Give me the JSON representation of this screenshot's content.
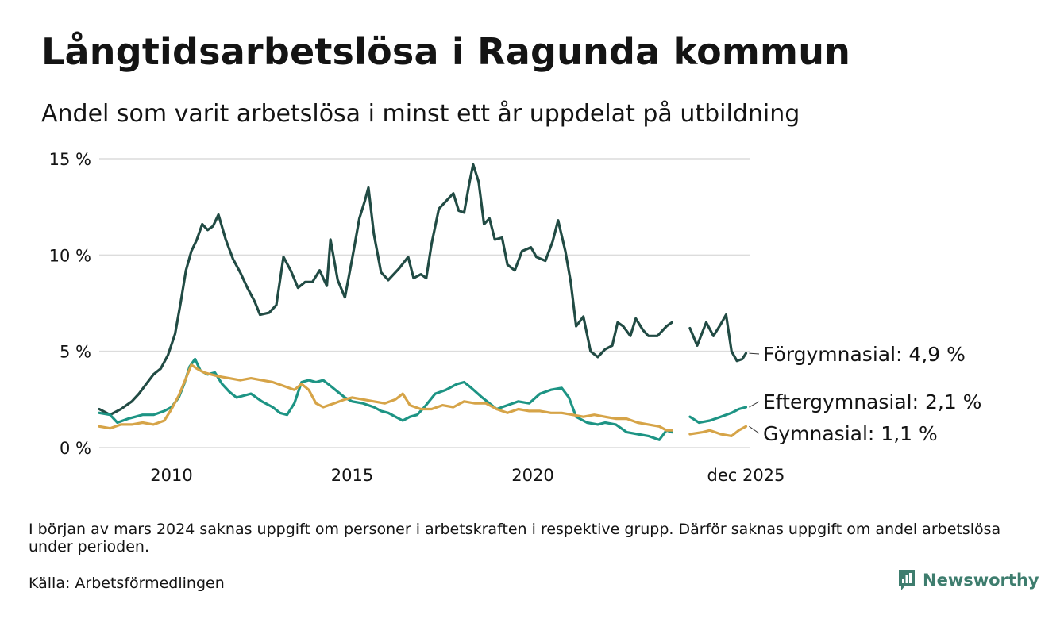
{
  "chart_data": {
    "type": "line",
    "title": "Långtidsarbetslösa i Ragunda kommun",
    "subtitle": "Andel som varit arbetslösa i minst ett år uppdelat på utbildning",
    "xlabel": "",
    "ylabel": "",
    "x_ticks": [
      {
        "x": 2010.0,
        "label": "2010"
      },
      {
        "x": 2015.0,
        "label": "2015"
      },
      {
        "x": 2020.0,
        "label": "2020"
      },
      {
        "x": 2025.9,
        "label": "dec 2025"
      }
    ],
    "y_ticks": [
      {
        "y": 0,
        "label": "0 %"
      },
      {
        "y": 5,
        "label": "5 %"
      },
      {
        "y": 10,
        "label": "10 %"
      },
      {
        "y": 15,
        "label": "15 %"
      }
    ],
    "xlim": [
      2008.0,
      2026.0
    ],
    "ylim": [
      0,
      15
    ],
    "grid": true,
    "series": [
      {
        "name": "Förgymnasial",
        "end_label": "Förgymnasial: 4,9 %",
        "color": "#214b44",
        "points": [
          [
            2008.0,
            2.0
          ],
          [
            2008.3,
            1.7
          ],
          [
            2008.6,
            2.0
          ],
          [
            2008.9,
            2.4
          ],
          [
            2009.1,
            2.8
          ],
          [
            2009.3,
            3.3
          ],
          [
            2009.5,
            3.8
          ],
          [
            2009.7,
            4.1
          ],
          [
            2009.9,
            4.8
          ],
          [
            2010.1,
            5.9
          ],
          [
            2010.25,
            7.5
          ],
          [
            2010.4,
            9.2
          ],
          [
            2010.55,
            10.2
          ],
          [
            2010.7,
            10.8
          ],
          [
            2010.85,
            11.6
          ],
          [
            2011.0,
            11.3
          ],
          [
            2011.15,
            11.5
          ],
          [
            2011.3,
            12.1
          ],
          [
            2011.5,
            10.8
          ],
          [
            2011.7,
            9.8
          ],
          [
            2011.9,
            9.1
          ],
          [
            2012.1,
            8.3
          ],
          [
            2012.3,
            7.6
          ],
          [
            2012.45,
            6.9
          ],
          [
            2012.7,
            7.0
          ],
          [
            2012.9,
            7.4
          ],
          [
            2013.1,
            9.9
          ],
          [
            2013.3,
            9.2
          ],
          [
            2013.5,
            8.3
          ],
          [
            2013.7,
            8.6
          ],
          [
            2013.9,
            8.6
          ],
          [
            2014.1,
            9.2
          ],
          [
            2014.3,
            8.4
          ],
          [
            2014.4,
            10.8
          ],
          [
            2014.6,
            8.7
          ],
          [
            2014.8,
            7.8
          ],
          [
            2015.0,
            9.8
          ],
          [
            2015.2,
            11.9
          ],
          [
            2015.35,
            12.8
          ],
          [
            2015.45,
            13.5
          ],
          [
            2015.6,
            11.1
          ],
          [
            2015.8,
            9.1
          ],
          [
            2016.0,
            8.7
          ],
          [
            2016.3,
            9.3
          ],
          [
            2016.55,
            9.9
          ],
          [
            2016.7,
            8.8
          ],
          [
            2016.9,
            9.0
          ],
          [
            2017.05,
            8.8
          ],
          [
            2017.2,
            10.6
          ],
          [
            2017.4,
            12.4
          ],
          [
            2017.6,
            12.8
          ],
          [
            2017.8,
            13.2
          ],
          [
            2017.95,
            12.3
          ],
          [
            2018.1,
            12.2
          ],
          [
            2018.25,
            13.8
          ],
          [
            2018.35,
            14.7
          ],
          [
            2018.5,
            13.8
          ],
          [
            2018.65,
            11.6
          ],
          [
            2018.8,
            11.9
          ],
          [
            2018.95,
            10.8
          ],
          [
            2019.15,
            10.9
          ],
          [
            2019.3,
            9.5
          ],
          [
            2019.5,
            9.2
          ],
          [
            2019.7,
            10.2
          ],
          [
            2019.95,
            10.4
          ],
          [
            2020.1,
            9.9
          ],
          [
            2020.35,
            9.7
          ],
          [
            2020.55,
            10.7
          ],
          [
            2020.7,
            11.8
          ],
          [
            2020.9,
            10.2
          ],
          [
            2021.05,
            8.6
          ],
          [
            2021.2,
            6.3
          ],
          [
            2021.4,
            6.8
          ],
          [
            2021.6,
            5.0
          ],
          [
            2021.8,
            4.7
          ],
          [
            2022.0,
            5.1
          ],
          [
            2022.2,
            5.3
          ],
          [
            2022.35,
            6.5
          ],
          [
            2022.5,
            6.3
          ],
          [
            2022.7,
            5.8
          ],
          [
            2022.85,
            6.7
          ],
          [
            2023.05,
            6.1
          ],
          [
            2023.2,
            5.8
          ],
          [
            2023.45,
            5.8
          ],
          [
            2023.7,
            6.3
          ],
          [
            2023.85,
            6.5
          ],
          null,
          [
            2024.35,
            6.2
          ],
          [
            2024.55,
            5.3
          ],
          [
            2024.8,
            6.5
          ],
          [
            2025.0,
            5.8
          ],
          [
            2025.2,
            6.4
          ],
          [
            2025.35,
            6.9
          ],
          [
            2025.5,
            5.0
          ],
          [
            2025.65,
            4.5
          ],
          [
            2025.8,
            4.6
          ],
          [
            2025.9,
            4.9
          ]
        ]
      },
      {
        "name": "Eftergymnasial",
        "end_label": "Eftergymnasial: 2,1 %",
        "color": "#1d9484",
        "points": [
          [
            2008.0,
            1.8
          ],
          [
            2008.3,
            1.7
          ],
          [
            2008.5,
            1.3
          ],
          [
            2008.8,
            1.5
          ],
          [
            2009.0,
            1.6
          ],
          [
            2009.2,
            1.7
          ],
          [
            2009.5,
            1.7
          ],
          [
            2009.8,
            1.9
          ],
          [
            2010.0,
            2.1
          ],
          [
            2010.2,
            2.6
          ],
          [
            2010.35,
            3.3
          ],
          [
            2010.5,
            4.2
          ],
          [
            2010.65,
            4.6
          ],
          [
            2010.8,
            4.0
          ],
          [
            2011.0,
            3.8
          ],
          [
            2011.2,
            3.9
          ],
          [
            2011.4,
            3.3
          ],
          [
            2011.6,
            2.9
          ],
          [
            2011.8,
            2.6
          ],
          [
            2012.0,
            2.7
          ],
          [
            2012.2,
            2.8
          ],
          [
            2012.5,
            2.4
          ],
          [
            2012.8,
            2.1
          ],
          [
            2013.0,
            1.8
          ],
          [
            2013.2,
            1.7
          ],
          [
            2013.4,
            2.3
          ],
          [
            2013.6,
            3.4
          ],
          [
            2013.8,
            3.5
          ],
          [
            2014.0,
            3.4
          ],
          [
            2014.2,
            3.5
          ],
          [
            2014.4,
            3.2
          ],
          [
            2014.6,
            2.9
          ],
          [
            2014.8,
            2.6
          ],
          [
            2015.0,
            2.4
          ],
          [
            2015.3,
            2.3
          ],
          [
            2015.6,
            2.1
          ],
          [
            2015.8,
            1.9
          ],
          [
            2016.0,
            1.8
          ],
          [
            2016.2,
            1.6
          ],
          [
            2016.4,
            1.4
          ],
          [
            2016.6,
            1.6
          ],
          [
            2016.8,
            1.7
          ],
          [
            2017.0,
            2.1
          ],
          [
            2017.3,
            2.8
          ],
          [
            2017.6,
            3.0
          ],
          [
            2017.9,
            3.3
          ],
          [
            2018.1,
            3.4
          ],
          [
            2018.3,
            3.1
          ],
          [
            2018.6,
            2.6
          ],
          [
            2018.8,
            2.3
          ],
          [
            2019.0,
            2.0
          ],
          [
            2019.3,
            2.2
          ],
          [
            2019.6,
            2.4
          ],
          [
            2019.9,
            2.3
          ],
          [
            2020.2,
            2.8
          ],
          [
            2020.5,
            3.0
          ],
          [
            2020.8,
            3.1
          ],
          [
            2021.0,
            2.6
          ],
          [
            2021.2,
            1.6
          ],
          [
            2021.5,
            1.3
          ],
          [
            2021.8,
            1.2
          ],
          [
            2022.0,
            1.3
          ],
          [
            2022.3,
            1.2
          ],
          [
            2022.6,
            0.8
          ],
          [
            2022.9,
            0.7
          ],
          [
            2023.2,
            0.6
          ],
          [
            2023.5,
            0.4
          ],
          [
            2023.7,
            0.9
          ],
          [
            2023.85,
            0.8
          ],
          null,
          [
            2024.35,
            1.6
          ],
          [
            2024.6,
            1.3
          ],
          [
            2024.9,
            1.4
          ],
          [
            2025.2,
            1.6
          ],
          [
            2025.5,
            1.8
          ],
          [
            2025.7,
            2.0
          ],
          [
            2025.9,
            2.1
          ]
        ]
      },
      {
        "name": "Gymnasial",
        "end_label": "Gymnasial: 1,1 %",
        "color": "#d6a448",
        "points": [
          [
            2008.0,
            1.1
          ],
          [
            2008.3,
            1.0
          ],
          [
            2008.6,
            1.2
          ],
          [
            2008.9,
            1.2
          ],
          [
            2009.2,
            1.3
          ],
          [
            2009.5,
            1.2
          ],
          [
            2009.8,
            1.4
          ],
          [
            2010.0,
            2.0
          ],
          [
            2010.2,
            2.7
          ],
          [
            2010.4,
            3.6
          ],
          [
            2010.55,
            4.3
          ],
          [
            2010.7,
            4.1
          ],
          [
            2010.9,
            3.9
          ],
          [
            2011.1,
            3.8
          ],
          [
            2011.3,
            3.7
          ],
          [
            2011.6,
            3.6
          ],
          [
            2011.9,
            3.5
          ],
          [
            2012.2,
            3.6
          ],
          [
            2012.5,
            3.5
          ],
          [
            2012.8,
            3.4
          ],
          [
            2013.1,
            3.2
          ],
          [
            2013.4,
            3.0
          ],
          [
            2013.6,
            3.3
          ],
          [
            2013.8,
            3.0
          ],
          [
            2014.0,
            2.3
          ],
          [
            2014.2,
            2.1
          ],
          [
            2014.5,
            2.3
          ],
          [
            2014.8,
            2.5
          ],
          [
            2015.0,
            2.6
          ],
          [
            2015.3,
            2.5
          ],
          [
            2015.6,
            2.4
          ],
          [
            2015.9,
            2.3
          ],
          [
            2016.2,
            2.5
          ],
          [
            2016.4,
            2.8
          ],
          [
            2016.6,
            2.2
          ],
          [
            2016.9,
            2.0
          ],
          [
            2017.2,
            2.0
          ],
          [
            2017.5,
            2.2
          ],
          [
            2017.8,
            2.1
          ],
          [
            2018.1,
            2.4
          ],
          [
            2018.4,
            2.3
          ],
          [
            2018.7,
            2.3
          ],
          [
            2019.0,
            2.0
          ],
          [
            2019.3,
            1.8
          ],
          [
            2019.6,
            2.0
          ],
          [
            2019.9,
            1.9
          ],
          [
            2020.2,
            1.9
          ],
          [
            2020.5,
            1.8
          ],
          [
            2020.8,
            1.8
          ],
          [
            2021.1,
            1.7
          ],
          [
            2021.4,
            1.6
          ],
          [
            2021.7,
            1.7
          ],
          [
            2022.0,
            1.6
          ],
          [
            2022.3,
            1.5
          ],
          [
            2022.6,
            1.5
          ],
          [
            2022.9,
            1.3
          ],
          [
            2023.2,
            1.2
          ],
          [
            2023.5,
            1.1
          ],
          [
            2023.7,
            0.9
          ],
          [
            2023.85,
            0.9
          ],
          null,
          [
            2024.35,
            0.7
          ],
          [
            2024.7,
            0.8
          ],
          [
            2024.9,
            0.9
          ],
          [
            2025.2,
            0.7
          ],
          [
            2025.5,
            0.6
          ],
          [
            2025.7,
            0.9
          ],
          [
            2025.9,
            1.1
          ]
        ]
      }
    ]
  },
  "footer": {
    "note": "I början av mars 2024 saknas uppgift om personer i arbetskraften i respektive grupp. Därför saknas uppgift om andel arbetslösa under perioden.",
    "source": "Källa: Arbetsförmedlingen",
    "brand": "Newsworthy",
    "brand_color": "#3e7d6e"
  }
}
